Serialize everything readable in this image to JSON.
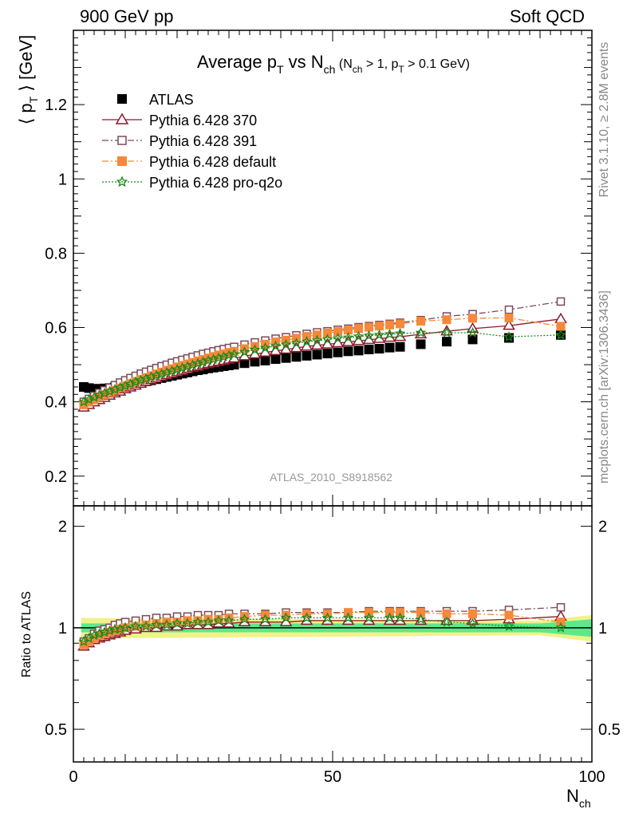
{
  "header": {
    "left": "900 GeV pp",
    "right": "Soft QCD"
  },
  "side_text": {
    "rivet": "Rivet 3.1.10, ≥ 2.8M events",
    "mcplots": "mcplots.cern.ch [arXiv:1306.3436]"
  },
  "chart_data": [
    {
      "type": "scatter",
      "panel": "main",
      "title_main": "Average p",
      "title_sub_T": "T",
      "title_vs": " vs N",
      "title_sub_ch": "ch",
      "title_cond_a": " (N",
      "title_cond_ch": "ch",
      "title_cond_b": " > 1, p",
      "title_cond_T": "T",
      "title_cond_c": " > 0.1 GeV)",
      "ylabel_a": "⟨ p",
      "ylabel_T": "T",
      "ylabel_b": " ⟩  [GeV]",
      "analysis_id": "ATLAS_2010_S8918562",
      "xlim": [
        0,
        100
      ],
      "ylim": [
        0.12,
        1.4
      ],
      "y_ticks": [
        "0.2",
        "0.4",
        "0.6",
        "0.8",
        "1",
        "1.2"
      ],
      "legend": [
        {
          "name": "ATLAS",
          "color": "#000000",
          "marker": "square-filled",
          "line": "none"
        },
        {
          "name": "Pythia 6.428 370",
          "color": "#8b1a2b",
          "marker": "triangle-open",
          "line": "solid"
        },
        {
          "name": "Pythia 6.428 391",
          "color": "#7a4a5a",
          "marker": "square-open",
          "line": "dashdot"
        },
        {
          "name": "Pythia 6.428 default",
          "color": "#f5883a",
          "marker": "square-filled",
          "line": "dashdot"
        },
        {
          "name": "Pythia 6.428 pro-q2o",
          "color": "#1a8a1a",
          "marker": "star-open",
          "line": "dotted"
        }
      ],
      "series": [
        {
          "name": "ATLAS",
          "x": [
            2,
            3,
            4,
            5,
            6,
            7,
            8,
            9,
            10,
            11,
            12,
            13,
            14,
            15,
            16,
            17,
            18,
            19,
            20,
            21,
            22,
            23,
            24,
            25,
            26,
            27,
            28,
            29,
            30,
            31,
            33,
            35,
            37,
            39,
            41,
            43,
            45,
            47,
            49,
            51,
            53,
            55,
            57,
            59,
            61,
            63,
            67,
            72,
            77,
            84,
            94
          ],
          "y": [
            0.44,
            0.437,
            0.435,
            0.435,
            0.436,
            0.437,
            0.439,
            0.441,
            0.443,
            0.446,
            0.449,
            0.452,
            0.455,
            0.458,
            0.461,
            0.464,
            0.467,
            0.47,
            0.473,
            0.476,
            0.479,
            0.482,
            0.485,
            0.487,
            0.49,
            0.492,
            0.494,
            0.496,
            0.498,
            0.5,
            0.504,
            0.508,
            0.511,
            0.515,
            0.518,
            0.521,
            0.524,
            0.527,
            0.53,
            0.533,
            0.536,
            0.538,
            0.541,
            0.543,
            0.546,
            0.548,
            0.555,
            0.562,
            0.568,
            0.572,
            0.58
          ]
        },
        {
          "name": "Pythia 6.428 370",
          "x": [
            2,
            3,
            4,
            5,
            6,
            7,
            8,
            9,
            10,
            11,
            12,
            13,
            14,
            15,
            16,
            17,
            18,
            19,
            20,
            21,
            22,
            23,
            24,
            25,
            26,
            27,
            28,
            29,
            30,
            31,
            33,
            35,
            37,
            39,
            41,
            43,
            45,
            47,
            49,
            51,
            53,
            55,
            57,
            59,
            61,
            63,
            67,
            72,
            77,
            84,
            94
          ],
          "y": [
            0.385,
            0.392,
            0.399,
            0.405,
            0.411,
            0.417,
            0.423,
            0.428,
            0.434,
            0.439,
            0.444,
            0.449,
            0.454,
            0.459,
            0.463,
            0.468,
            0.472,
            0.476,
            0.48,
            0.484,
            0.488,
            0.492,
            0.495,
            0.499,
            0.502,
            0.505,
            0.508,
            0.511,
            0.514,
            0.517,
            0.523,
            0.528,
            0.533,
            0.537,
            0.541,
            0.545,
            0.549,
            0.552,
            0.555,
            0.558,
            0.561,
            0.564,
            0.567,
            0.57,
            0.573,
            0.575,
            0.582,
            0.59,
            0.597,
            0.605,
            0.623
          ]
        },
        {
          "name": "Pythia 6.428 391",
          "x": [
            2,
            3,
            4,
            5,
            6,
            7,
            8,
            9,
            10,
            11,
            12,
            13,
            14,
            15,
            16,
            17,
            18,
            19,
            20,
            21,
            22,
            23,
            24,
            25,
            26,
            27,
            28,
            29,
            30,
            31,
            33,
            35,
            37,
            39,
            41,
            43,
            45,
            47,
            49,
            51,
            53,
            55,
            57,
            59,
            61,
            63,
            67,
            72,
            77,
            84,
            94
          ],
          "y": [
            0.4,
            0.408,
            0.416,
            0.424,
            0.431,
            0.438,
            0.445,
            0.452,
            0.458,
            0.464,
            0.47,
            0.476,
            0.481,
            0.486,
            0.491,
            0.496,
            0.5,
            0.505,
            0.509,
            0.513,
            0.517,
            0.521,
            0.525,
            0.529,
            0.532,
            0.536,
            0.539,
            0.542,
            0.545,
            0.548,
            0.554,
            0.56,
            0.565,
            0.57,
            0.574,
            0.579,
            0.583,
            0.587,
            0.59,
            0.594,
            0.597,
            0.601,
            0.604,
            0.607,
            0.61,
            0.613,
            0.62,
            0.63,
            0.636,
            0.648,
            0.67
          ]
        },
        {
          "name": "Pythia 6.428 default",
          "x": [
            2,
            3,
            4,
            5,
            6,
            7,
            8,
            9,
            10,
            11,
            12,
            13,
            14,
            15,
            16,
            17,
            18,
            19,
            20,
            21,
            22,
            23,
            24,
            25,
            26,
            27,
            28,
            29,
            30,
            31,
            33,
            35,
            37,
            39,
            41,
            43,
            45,
            47,
            49,
            51,
            53,
            55,
            57,
            59,
            61,
            63,
            67,
            72,
            77,
            84,
            94
          ],
          "y": [
            0.392,
            0.399,
            0.406,
            0.413,
            0.419,
            0.425,
            0.431,
            0.437,
            0.443,
            0.449,
            0.455,
            0.46,
            0.465,
            0.47,
            0.475,
            0.48,
            0.485,
            0.489,
            0.494,
            0.498,
            0.502,
            0.506,
            0.51,
            0.514,
            0.518,
            0.522,
            0.526,
            0.529,
            0.533,
            0.536,
            0.543,
            0.549,
            0.555,
            0.561,
            0.566,
            0.571,
            0.576,
            0.58,
            0.585,
            0.589,
            0.593,
            0.597,
            0.601,
            0.604,
            0.607,
            0.61,
            0.617,
            0.621,
            0.625,
            0.626,
            0.603
          ]
        },
        {
          "name": "Pythia 6.428 pro-q2o",
          "x": [
            2,
            3,
            4,
            5,
            6,
            7,
            8,
            9,
            10,
            11,
            12,
            13,
            14,
            15,
            16,
            17,
            18,
            19,
            20,
            21,
            22,
            23,
            24,
            25,
            26,
            27,
            28,
            29,
            30,
            31,
            33,
            35,
            37,
            39,
            41,
            43,
            45,
            47,
            49,
            51,
            53,
            55,
            57,
            59,
            61,
            63,
            67,
            72,
            77,
            84,
            94
          ],
          "y": [
            0.4,
            0.406,
            0.412,
            0.418,
            0.423,
            0.428,
            0.433,
            0.438,
            0.443,
            0.448,
            0.453,
            0.458,
            0.462,
            0.467,
            0.471,
            0.475,
            0.479,
            0.483,
            0.487,
            0.491,
            0.495,
            0.499,
            0.503,
            0.507,
            0.511,
            0.514,
            0.518,
            0.521,
            0.525,
            0.528,
            0.534,
            0.54,
            0.545,
            0.55,
            0.554,
            0.558,
            0.562,
            0.565,
            0.568,
            0.571,
            0.573,
            0.576,
            0.578,
            0.58,
            0.582,
            0.584,
            0.586,
            0.586,
            0.586,
            0.575,
            0.58
          ]
        }
      ]
    },
    {
      "type": "scatter",
      "panel": "ratio",
      "ylabel": "Ratio to ATLAS",
      "xlabel_a": "N",
      "xlabel_sub": "ch",
      "xlim": [
        0,
        100
      ],
      "ylim": [
        0.4,
        2.3
      ],
      "log_y": true,
      "y_ticks": [
        "0.5",
        "1",
        "2"
      ],
      "x_ticks": [
        "0",
        "50",
        "100"
      ],
      "reference_line": 1,
      "band_colors": {
        "inner": "#5ee88a",
        "outer": "#f0f28a"
      },
      "band": {
        "x": [
          1.5,
          90,
          100
        ],
        "inner_half_width": [
          0.03,
          0.03,
          0.06
        ],
        "outer_half_width": [
          0.07,
          0.05,
          0.09
        ]
      },
      "series": [
        {
          "name": "Pythia 6.428 370",
          "color": "#8b1a2b",
          "marker": "triangle-open",
          "line": "solid",
          "x": [
            2,
            3,
            4,
            5,
            6,
            7,
            8,
            9,
            10,
            12,
            14,
            16,
            18,
            20,
            22,
            24,
            26,
            28,
            30,
            33,
            37,
            41,
            45,
            49,
            53,
            57,
            61,
            63,
            67,
            72,
            77,
            84,
            94
          ],
          "y": [
            0.88,
            0.9,
            0.92,
            0.93,
            0.94,
            0.95,
            0.96,
            0.97,
            0.98,
            0.99,
            1.0,
            1.0,
            1.01,
            1.01,
            1.02,
            1.02,
            1.02,
            1.03,
            1.03,
            1.04,
            1.04,
            1.04,
            1.05,
            1.05,
            1.05,
            1.05,
            1.05,
            1.05,
            1.05,
            1.05,
            1.05,
            1.06,
            1.08
          ]
        },
        {
          "name": "Pythia 6.428 391",
          "color": "#7a4a5a",
          "marker": "square-open",
          "line": "dashdot",
          "x": [
            2,
            3,
            4,
            5,
            6,
            7,
            8,
            9,
            10,
            12,
            14,
            16,
            18,
            20,
            22,
            24,
            26,
            28,
            30,
            33,
            37,
            41,
            45,
            49,
            53,
            57,
            61,
            63,
            67,
            72,
            77,
            84,
            94
          ],
          "y": [
            0.91,
            0.93,
            0.96,
            0.98,
            0.99,
            1.0,
            1.02,
            1.03,
            1.04,
            1.05,
            1.06,
            1.07,
            1.07,
            1.08,
            1.08,
            1.09,
            1.09,
            1.09,
            1.1,
            1.1,
            1.1,
            1.11,
            1.11,
            1.11,
            1.11,
            1.12,
            1.12,
            1.12,
            1.12,
            1.12,
            1.12,
            1.13,
            1.15
          ]
        },
        {
          "name": "Pythia 6.428 default",
          "color": "#f5883a",
          "marker": "square-filled",
          "line": "dashdot",
          "x": [
            2,
            3,
            4,
            5,
            6,
            7,
            8,
            9,
            10,
            12,
            14,
            16,
            18,
            20,
            22,
            24,
            26,
            28,
            30,
            33,
            37,
            41,
            45,
            49,
            53,
            57,
            61,
            63,
            67,
            72,
            77,
            84,
            94
          ],
          "y": [
            0.89,
            0.91,
            0.93,
            0.95,
            0.96,
            0.97,
            0.98,
            0.99,
            1.0,
            1.01,
            1.02,
            1.03,
            1.04,
            1.04,
            1.05,
            1.05,
            1.06,
            1.06,
            1.07,
            1.08,
            1.09,
            1.09,
            1.1,
            1.1,
            1.11,
            1.11,
            1.11,
            1.11,
            1.11,
            1.1,
            1.1,
            1.09,
            1.04
          ]
        },
        {
          "name": "Pythia 6.428 pro-q2o",
          "color": "#1a8a1a",
          "marker": "star-open",
          "line": "dotted",
          "x": [
            2,
            3,
            4,
            5,
            6,
            7,
            8,
            9,
            10,
            12,
            14,
            16,
            18,
            20,
            22,
            24,
            26,
            28,
            30,
            33,
            37,
            41,
            45,
            49,
            53,
            57,
            61,
            63,
            67,
            72,
            77,
            84,
            94
          ],
          "y": [
            0.91,
            0.93,
            0.95,
            0.96,
            0.97,
            0.98,
            0.99,
            0.99,
            1.0,
            1.01,
            1.01,
            1.02,
            1.02,
            1.03,
            1.03,
            1.04,
            1.04,
            1.05,
            1.05,
            1.06,
            1.06,
            1.07,
            1.07,
            1.07,
            1.07,
            1.07,
            1.07,
            1.07,
            1.06,
            1.04,
            1.03,
            1.01,
            1.0
          ]
        }
      ]
    }
  ]
}
